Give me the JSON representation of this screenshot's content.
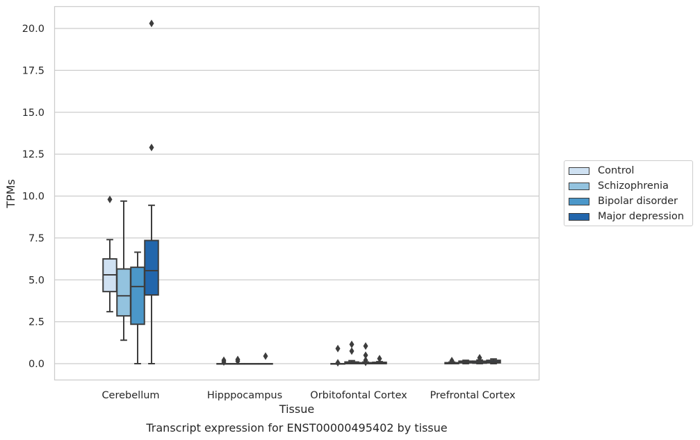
{
  "chart_data": {
    "type": "box",
    "title": "",
    "caption": "Transcript expression for ENST00000495402 by tissue",
    "xlabel": "Tissue",
    "ylabel": "TPMs",
    "ylim": [
      -1.0,
      21.3
    ],
    "yticks": [
      0.0,
      2.5,
      5.0,
      7.5,
      10.0,
      12.5,
      15.0,
      17.5,
      20.0
    ],
    "ytick_labels": [
      "0.0",
      "2.5",
      "5.0",
      "7.5",
      "10.0",
      "12.5",
      "15.0",
      "17.5",
      "20.0"
    ],
    "grid": "horizontal",
    "legend_placement": "right-outside",
    "categories": [
      "Cerebellum",
      "Hipppocampus",
      "Orbitofontal Cortex",
      "Prefrontal Cortex"
    ],
    "series": [
      {
        "name": "Control",
        "color": "#cfe1f2",
        "boxes": [
          {
            "whislo": 3.1,
            "q1": 4.3,
            "med": 5.3,
            "q3": 6.25,
            "whishi": 7.4,
            "fliers": [
              9.8
            ]
          },
          {
            "whislo": 0.0,
            "q1": 0.0,
            "med": 0.0,
            "q3": 0.0,
            "whishi": 0.0,
            "fliers": [
              0.1,
              0.2
            ]
          },
          {
            "whislo": 0.0,
            "q1": 0.0,
            "med": 0.0,
            "q3": 0.0,
            "whishi": 0.0,
            "fliers": [
              0.9,
              0.05
            ]
          },
          {
            "whislo": 0.0,
            "q1": 0.0,
            "med": 0.03,
            "q3": 0.06,
            "whishi": 0.1,
            "fliers": [
              0.18
            ]
          }
        ]
      },
      {
        "name": "Schizophrenia",
        "color": "#93c3df",
        "boxes": [
          {
            "whislo": 1.4,
            "q1": 2.85,
            "med": 4.05,
            "q3": 5.65,
            "whishi": 9.7,
            "fliers": []
          },
          {
            "whislo": 0.0,
            "q1": 0.0,
            "med": 0.0,
            "q3": 0.0,
            "whishi": 0.0,
            "fliers": [
              0.15,
              0.25
            ]
          },
          {
            "whislo": 0.0,
            "q1": 0.0,
            "med": 0.05,
            "q3": 0.1,
            "whishi": 0.18,
            "fliers": [
              1.15,
              0.75
            ]
          },
          {
            "whislo": 0.0,
            "q1": 0.05,
            "med": 0.1,
            "q3": 0.15,
            "whishi": 0.2,
            "fliers": []
          }
        ]
      },
      {
        "name": "Bipolar disorder",
        "color": "#4b97c9",
        "boxes": [
          {
            "whislo": 0.0,
            "q1": 2.35,
            "med": 4.6,
            "q3": 5.75,
            "whishi": 6.65,
            "fliers": []
          },
          {
            "whislo": 0.0,
            "q1": 0.0,
            "med": 0.0,
            "q3": 0.0,
            "whishi": 0.0,
            "fliers": []
          },
          {
            "whislo": 0.0,
            "q1": 0.0,
            "med": 0.02,
            "q3": 0.06,
            "whishi": 0.1,
            "fliers": [
              1.05,
              0.5,
              0.2,
              0.08
            ]
          },
          {
            "whislo": 0.0,
            "q1": 0.03,
            "med": 0.08,
            "q3": 0.15,
            "whishi": 0.22,
            "fliers": [
              0.35
            ]
          }
        ]
      },
      {
        "name": "Major depression",
        "color": "#2266ac",
        "boxes": [
          {
            "whislo": 0.0,
            "q1": 4.1,
            "med": 5.55,
            "q3": 7.35,
            "whishi": 9.45,
            "fliers": [
              12.9,
              20.3
            ]
          },
          {
            "whislo": 0.0,
            "q1": 0.0,
            "med": 0.0,
            "q3": 0.0,
            "whishi": 0.0,
            "fliers": [
              0.45
            ]
          },
          {
            "whislo": 0.0,
            "q1": 0.0,
            "med": 0.03,
            "q3": 0.08,
            "whishi": 0.12,
            "fliers": [
              0.3
            ]
          },
          {
            "whislo": 0.0,
            "q1": 0.05,
            "med": 0.12,
            "q3": 0.2,
            "whishi": 0.28,
            "fliers": []
          }
        ]
      }
    ]
  }
}
